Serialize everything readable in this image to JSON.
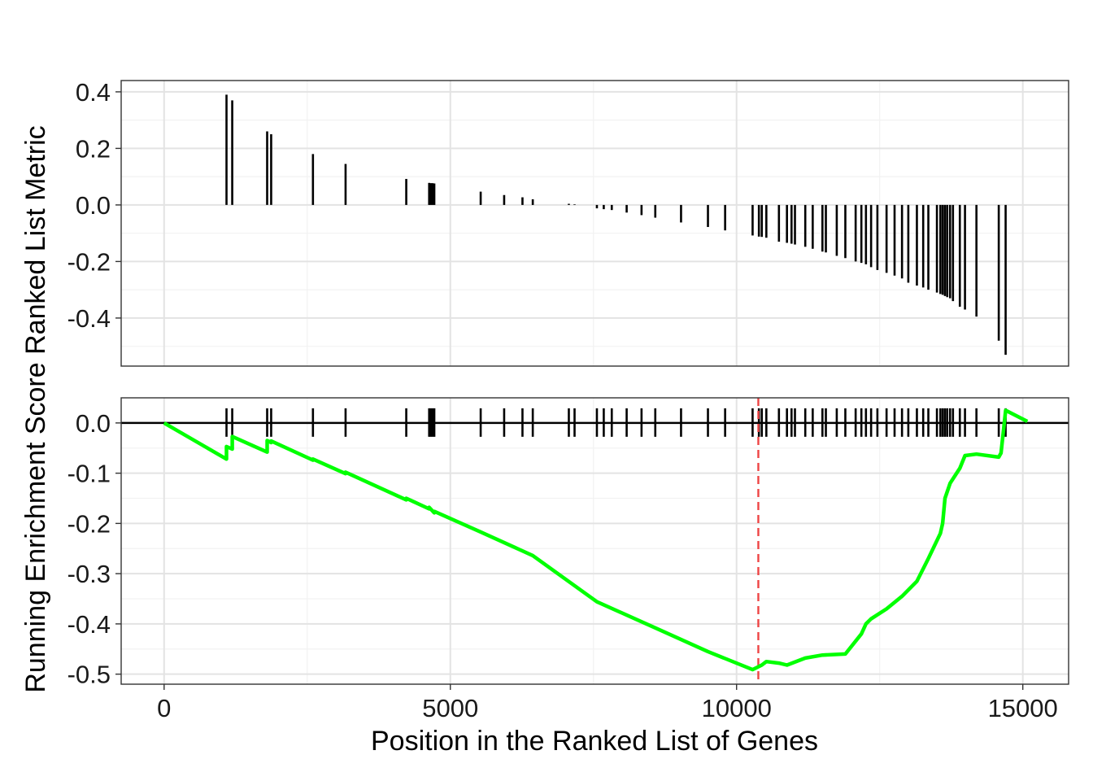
{
  "chart_data": {
    "type": "line",
    "xlabel": "Position in the Ranked List of Genes",
    "ylabel": "Running Enrichment Score Ranked List Metric",
    "x_ticks": [
      "0",
      "5000",
      "10000",
      "15000"
    ],
    "xlim": [
      -750,
      15800
    ],
    "colors": {
      "running_es_line": "#00ff00",
      "peak_marker_line": "#ee4444",
      "hit_bars": "#000000",
      "zero_line": "#000000"
    },
    "panels": [
      {
        "name": "ranked-metric",
        "ylabel": "Ranked List Metric",
        "y_ticks": [
          "0.4",
          "0.2",
          "0.0",
          "-0.2",
          "-0.4"
        ],
        "ylim": [
          -0.57,
          0.44
        ],
        "type": "bar",
        "hits_x": [
          1090,
          1190,
          1800,
          1870,
          2600,
          3170,
          4230,
          4630,
          4660,
          4690,
          4720,
          5530,
          5940,
          6260,
          6440,
          7070,
          7170,
          7560,
          7680,
          7820,
          8080,
          8340,
          8580,
          9030,
          9500,
          9800,
          10280,
          10390,
          10440,
          10520,
          10740,
          10880,
          10960,
          11020,
          11200,
          11330,
          11500,
          11560,
          11750,
          11900,
          12080,
          12180,
          12260,
          12350,
          12460,
          12620,
          12760,
          12890,
          13000,
          13150,
          13260,
          13350,
          13500,
          13560,
          13600,
          13640,
          13680,
          13730,
          13780,
          13900,
          13990,
          14190,
          14580,
          14700
        ],
        "metric_values": [
          0.39,
          0.37,
          0.26,
          0.25,
          0.18,
          0.145,
          0.092,
          0.078,
          0.077,
          0.077,
          0.076,
          0.047,
          0.035,
          0.027,
          0.02,
          0.004,
          0.002,
          -0.012,
          -0.015,
          -0.018,
          -0.027,
          -0.036,
          -0.045,
          -0.062,
          -0.078,
          -0.09,
          -0.108,
          -0.112,
          -0.113,
          -0.116,
          -0.13,
          -0.134,
          -0.137,
          -0.14,
          -0.148,
          -0.155,
          -0.165,
          -0.168,
          -0.18,
          -0.188,
          -0.2,
          -0.205,
          -0.21,
          -0.22,
          -0.23,
          -0.24,
          -0.25,
          -0.26,
          -0.275,
          -0.285,
          -0.292,
          -0.3,
          -0.31,
          -0.315,
          -0.318,
          -0.322,
          -0.326,
          -0.33,
          -0.34,
          -0.36,
          -0.37,
          -0.395,
          -0.48,
          -0.53
        ]
      },
      {
        "name": "running-enrichment",
        "ylabel": "Running Enrichment Score",
        "y_ticks": [
          "0.0",
          "-0.1",
          "-0.2",
          "-0.3",
          "-0.4",
          "-0.5"
        ],
        "ylim": [
          -0.52,
          0.05
        ],
        "peak_x": 10380,
        "series": [
          {
            "type": "line",
            "x": [
              0,
              1090,
              1090,
              1190,
              1190,
              1800,
              1800,
              1870,
              1870,
              2600,
              2600,
              3170,
              3170,
              4230,
              4230,
              4630,
              4630,
              4720,
              4720,
              5530,
              6440,
              7560,
              8580,
              9500,
              10280,
              10440,
              10520,
              10740,
              10880,
              11200,
              11500,
              11900,
              12180,
              12260,
              12350,
              12620,
              12890,
              13150,
              13350,
              13560,
              13600,
              13640,
              13730,
              13900,
              13990,
              14190,
              14580,
              14620,
              14700,
              15080
            ],
            "values": [
              0,
              -0.072,
              -0.047,
              -0.052,
              -0.027,
              -0.058,
              -0.035,
              -0.039,
              -0.036,
              -0.074,
              -0.072,
              -0.101,
              -0.098,
              -0.153,
              -0.15,
              -0.171,
              -0.168,
              -0.179,
              -0.176,
              -0.217,
              -0.264,
              -0.356,
              -0.408,
              -0.455,
              -0.491,
              -0.482,
              -0.475,
              -0.478,
              -0.482,
              -0.468,
              -0.462,
              -0.46,
              -0.42,
              -0.4,
              -0.39,
              -0.37,
              -0.345,
              -0.315,
              -0.27,
              -0.22,
              -0.2,
              -0.15,
              -0.12,
              -0.09,
              -0.065,
              -0.062,
              -0.068,
              -0.06,
              0.025,
              0.003
            ]
          }
        ]
      }
    ]
  }
}
